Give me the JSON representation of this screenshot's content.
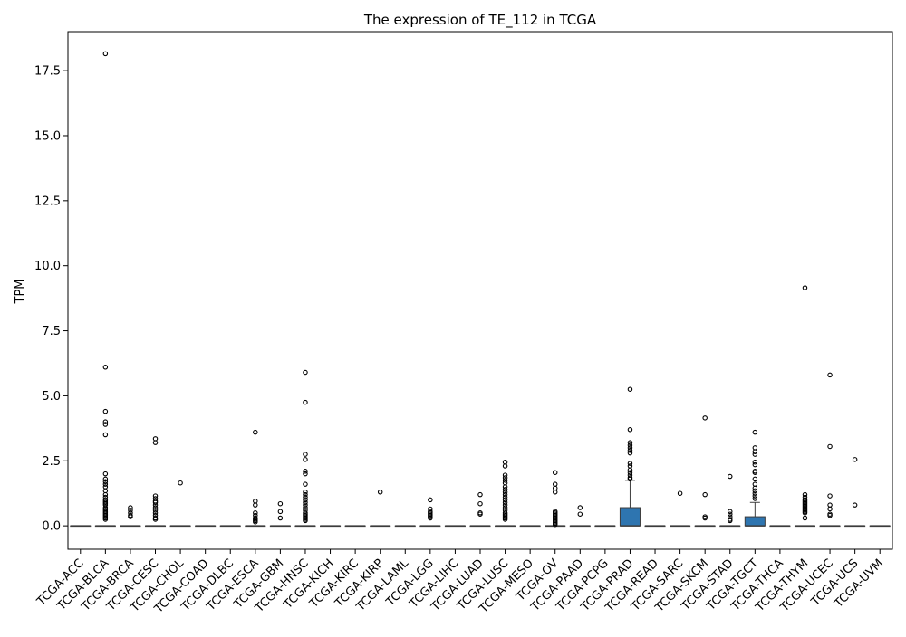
{
  "chart_data": {
    "type": "box",
    "title": "The expression of TE_112 in TCGA",
    "xlabel": "",
    "ylabel": "TPM",
    "ylim": [
      -0.9,
      19.0
    ],
    "yticks": [
      0.0,
      2.5,
      5.0,
      7.5,
      10.0,
      12.5,
      15.0,
      17.5
    ],
    "ytick_labels": [
      "0.0",
      "2.5",
      "5.0",
      "7.5",
      "10.0",
      "12.5",
      "15.0",
      "17.5"
    ],
    "grid": false,
    "box_color": "#2e75b0",
    "categories": [
      "TCGA-ACC",
      "TCGA-BLCA",
      "TCGA-BRCA",
      "TCGA-CESC",
      "TCGA-CHOL",
      "TCGA-COAD",
      "TCGA-DLBC",
      "TCGA-ESCA",
      "TCGA-GBM",
      "TCGA-HNSC",
      "TCGA-KICH",
      "TCGA-KIRC",
      "TCGA-KIRP",
      "TCGA-LAML",
      "TCGA-LGG",
      "TCGA-LIHC",
      "TCGA-LUAD",
      "TCGA-LUSC",
      "TCGA-MESO",
      "TCGA-OV",
      "TCGA-PAAD",
      "TCGA-PCPG",
      "TCGA-PRAD",
      "TCGA-READ",
      "TCGA-SARC",
      "TCGA-SKCM",
      "TCGA-STAD",
      "TCGA-TGCT",
      "TCGA-THCA",
      "TCGA-THYM",
      "TCGA-UCEC",
      "TCGA-UCS",
      "TCGA-UVM"
    ],
    "boxes": [
      {
        "q1": 0,
        "median": 0,
        "q3": 0,
        "whisker_low": 0,
        "whisker_high": 0,
        "outliers": []
      },
      {
        "q1": 0,
        "median": 0,
        "q3": 0,
        "whisker_low": 0,
        "whisker_high": 0,
        "outliers": [
          18.15,
          6.1,
          4.4,
          4.0,
          3.9,
          3.5,
          2.0,
          1.8,
          1.7,
          1.6,
          1.5,
          1.35,
          1.2,
          1.1,
          1.0,
          0.95,
          0.9,
          0.85,
          0.8,
          0.7,
          0.65,
          0.6,
          0.55,
          0.5,
          0.45,
          0.4,
          0.35,
          0.3,
          0.25
        ]
      },
      {
        "q1": 0,
        "median": 0,
        "q3": 0,
        "whisker_low": 0,
        "whisker_high": 0,
        "outliers": [
          0.7,
          0.6,
          0.5,
          0.4,
          0.35
        ]
      },
      {
        "q1": 0,
        "median": 0,
        "q3": 0,
        "whisker_low": 0,
        "whisker_high": 0,
        "outliers": [
          3.35,
          3.2,
          1.15,
          1.05,
          0.95,
          0.9,
          0.8,
          0.7,
          0.6,
          0.5,
          0.4,
          0.3,
          0.25
        ]
      },
      {
        "q1": 0,
        "median": 0,
        "q3": 0,
        "whisker_low": 0,
        "whisker_high": 0,
        "outliers": [
          1.65
        ]
      },
      {
        "q1": 0,
        "median": 0,
        "q3": 0,
        "whisker_low": 0,
        "whisker_high": 0,
        "outliers": []
      },
      {
        "q1": 0,
        "median": 0,
        "q3": 0,
        "whisker_low": 0,
        "whisker_high": 0,
        "outliers": []
      },
      {
        "q1": 0,
        "median": 0,
        "q3": 0,
        "whisker_low": 0,
        "whisker_high": 0,
        "outliers": [
          3.6,
          0.95,
          0.8,
          0.5,
          0.4,
          0.3,
          0.25,
          0.2,
          0.15
        ]
      },
      {
        "q1": 0,
        "median": 0,
        "q3": 0,
        "whisker_low": 0,
        "whisker_high": 0,
        "outliers": [
          0.85,
          0.55,
          0.3
        ]
      },
      {
        "q1": 0,
        "median": 0,
        "q3": 0,
        "whisker_low": 0,
        "whisker_high": 0,
        "outliers": [
          5.9,
          4.75,
          2.75,
          2.55,
          2.1,
          2.0,
          1.6,
          1.3,
          1.2,
          1.1,
          1.0,
          0.9,
          0.8,
          0.7,
          0.6,
          0.5,
          0.45,
          0.4,
          0.35,
          0.3,
          0.25,
          0.2
        ]
      },
      {
        "q1": 0,
        "median": 0,
        "q3": 0,
        "whisker_low": 0,
        "whisker_high": 0,
        "outliers": []
      },
      {
        "q1": 0,
        "median": 0,
        "q3": 0,
        "whisker_low": 0,
        "whisker_high": 0,
        "outliers": []
      },
      {
        "q1": 0,
        "median": 0,
        "q3": 0,
        "whisker_low": 0,
        "whisker_high": 0,
        "outliers": [
          1.3
        ]
      },
      {
        "q1": 0,
        "median": 0,
        "q3": 0,
        "whisker_low": 0,
        "whisker_high": 0,
        "outliers": []
      },
      {
        "q1": 0,
        "median": 0,
        "q3": 0,
        "whisker_low": 0,
        "whisker_high": 0,
        "outliers": [
          1.0,
          0.65,
          0.55,
          0.5,
          0.45,
          0.4,
          0.35,
          0.3
        ]
      },
      {
        "q1": 0,
        "median": 0,
        "q3": 0,
        "whisker_low": 0,
        "whisker_high": 0,
        "outliers": []
      },
      {
        "q1": 0,
        "median": 0,
        "q3": 0,
        "whisker_low": 0,
        "whisker_high": 0,
        "outliers": [
          1.2,
          0.85,
          0.5,
          0.45
        ]
      },
      {
        "q1": 0,
        "median": 0,
        "q3": 0,
        "whisker_low": 0,
        "whisker_high": 0,
        "outliers": [
          2.45,
          2.3,
          1.95,
          1.85,
          1.75,
          1.65,
          1.5,
          1.4,
          1.3,
          1.2,
          1.1,
          1.0,
          0.9,
          0.8,
          0.7,
          0.6,
          0.5,
          0.45,
          0.4,
          0.35,
          0.3,
          0.25
        ]
      },
      {
        "q1": 0,
        "median": 0,
        "q3": 0,
        "whisker_low": 0,
        "whisker_high": 0,
        "outliers": []
      },
      {
        "q1": 0,
        "median": 0,
        "q3": 0,
        "whisker_low": 0,
        "whisker_high": 0,
        "outliers": [
          2.05,
          1.6,
          1.45,
          1.3,
          0.55,
          0.5,
          0.45,
          0.4,
          0.35,
          0.3,
          0.25,
          0.2,
          0.15,
          0.1,
          0.05
        ]
      },
      {
        "q1": 0,
        "median": 0,
        "q3": 0,
        "whisker_low": 0,
        "whisker_high": 0,
        "outliers": [
          0.7,
          0.45
        ]
      },
      {
        "q1": 0,
        "median": 0,
        "q3": 0,
        "whisker_low": 0,
        "whisker_high": 0,
        "outliers": []
      },
      {
        "q1": 0,
        "median": 0,
        "q3": 0.7,
        "whisker_low": 0,
        "whisker_high": 1.75,
        "outliers": [
          5.25,
          3.7,
          3.2,
          3.1,
          3.0,
          2.9,
          2.8,
          2.4,
          2.3,
          2.15,
          2.05,
          1.95,
          1.85,
          1.8
        ]
      },
      {
        "q1": 0,
        "median": 0,
        "q3": 0,
        "whisker_low": 0,
        "whisker_high": 0,
        "outliers": []
      },
      {
        "q1": 0,
        "median": 0,
        "q3": 0,
        "whisker_low": 0,
        "whisker_high": 0,
        "outliers": [
          1.25
        ]
      },
      {
        "q1": 0,
        "median": 0,
        "q3": 0,
        "whisker_low": 0,
        "whisker_high": 0,
        "outliers": [
          4.15,
          1.2,
          0.35,
          0.3
        ]
      },
      {
        "q1": 0,
        "median": 0,
        "q3": 0,
        "whisker_low": 0,
        "whisker_high": 0,
        "outliers": [
          1.9,
          0.55,
          0.45,
          0.35,
          0.25,
          0.2
        ]
      },
      {
        "q1": 0,
        "median": 0,
        "q3": 0.35,
        "whisker_low": 0,
        "whisker_high": 0.9,
        "outliers": [
          3.6,
          3.0,
          2.85,
          2.75,
          2.45,
          2.35,
          2.1,
          2.05,
          1.8,
          1.6,
          1.45,
          1.35,
          1.25,
          1.15,
          1.05
        ]
      },
      {
        "q1": 0,
        "median": 0,
        "q3": 0,
        "whisker_low": 0,
        "whisker_high": 0,
        "outliers": []
      },
      {
        "q1": 0,
        "median": 0,
        "q3": 0,
        "whisker_low": 0,
        "whisker_high": 0,
        "outliers": [
          9.15,
          1.2,
          1.1,
          1.0,
          0.95,
          0.9,
          0.85,
          0.8,
          0.75,
          0.7,
          0.65,
          0.6,
          0.55,
          0.5,
          0.3
        ]
      },
      {
        "q1": 0,
        "median": 0,
        "q3": 0,
        "whisker_low": 0,
        "whisker_high": 0,
        "outliers": [
          5.8,
          3.05,
          1.15,
          0.8,
          0.65,
          0.45,
          0.4
        ]
      },
      {
        "q1": 0,
        "median": 0,
        "q3": 0,
        "whisker_low": 0,
        "whisker_high": 0,
        "outliers": [
          2.55,
          0.8
        ]
      },
      {
        "q1": 0,
        "median": 0,
        "q3": 0,
        "whisker_low": 0,
        "whisker_high": 0,
        "outliers": []
      }
    ]
  }
}
